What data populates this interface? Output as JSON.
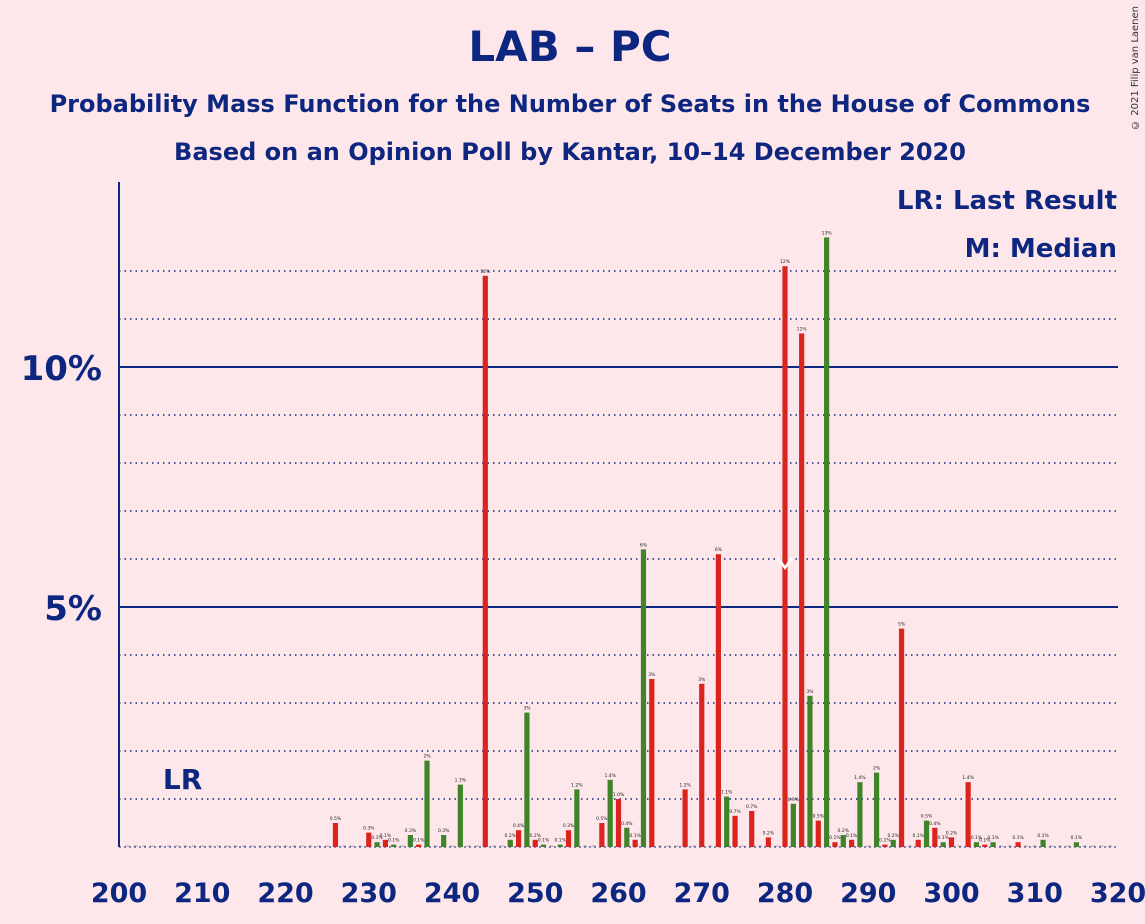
{
  "header": {
    "title": "LAB – PC",
    "subtitle": "Probability Mass Function for the Number of Seats in the House of Commons",
    "poll_info": "Based on an Opinion Poll by Kantar, 10–14 December 2020"
  },
  "copyright": "© 2021 Filip van Laenen",
  "legend": {
    "last_result": "LR: Last Result",
    "median": "M: Median"
  },
  "colors": {
    "background": "#fde7ea",
    "text": "#0d2680",
    "lab_red": "#dc241f",
    "pc_green": "#3f8428"
  },
  "chart_data": {
    "type": "bar",
    "title": "LAB – PC",
    "xlim": [
      200,
      320
    ],
    "ylim": [
      0,
      13.8
    ],
    "x_ticks": [
      200,
      210,
      220,
      230,
      240,
      250,
      260,
      270,
      280,
      290,
      300,
      310,
      320
    ],
    "x_tick_labels": [
      "200",
      "210",
      "220",
      "230",
      "240",
      "250",
      "260",
      "270",
      "280",
      "290",
      "300",
      "310",
      "320"
    ],
    "y_ticks_major": [
      5,
      10
    ],
    "y_tick_labels": [
      "5%",
      "10%"
    ],
    "y_gridlines_minor": [
      1,
      2,
      3,
      4,
      6,
      7,
      8,
      9,
      11,
      12
    ],
    "last_result": {
      "seat": 205,
      "label": "LR"
    },
    "median": {
      "seat": 280,
      "label": "M"
    },
    "seats": [
      226,
      230,
      231,
      232,
      233,
      235,
      236,
      237,
      239,
      241,
      244,
      247,
      248,
      249,
      250,
      251,
      253,
      254,
      255,
      258,
      259,
      260,
      261,
      262,
      263,
      264,
      268,
      270,
      272,
      273,
      274,
      276,
      278,
      280,
      281,
      282,
      283,
      284,
      285,
      286,
      287,
      288,
      289,
      291,
      292,
      293,
      294,
      296,
      297,
      298,
      299,
      300,
      302,
      303,
      304,
      305,
      308,
      311,
      315
    ],
    "values": [
      0.5,
      0.3,
      0.1,
      0.15,
      0.05,
      0.25,
      0.05,
      1.8,
      0.25,
      1.3,
      11.9,
      0.15,
      0.35,
      2.8,
      0.15,
      0.05,
      0.05,
      0.35,
      1.2,
      0.5,
      1.4,
      1.0,
      0.4,
      0.15,
      6.2,
      3.5,
      1.2,
      3.4,
      6.1,
      1.05,
      0.65,
      0.75,
      0.2,
      12.1,
      0.9,
      10.7,
      3.15,
      0.55,
      12.7,
      0.1,
      0.25,
      0.15,
      1.35,
      1.55,
      0.05,
      0.15,
      4.55,
      0.15,
      0.55,
      0.4,
      0.1,
      0.2,
      1.35,
      0.1,
      0.05,
      0.1,
      0.1,
      0.15,
      0.1
    ],
    "labels": [
      "0.5%",
      "0.3%",
      "0.1%",
      "0.1%",
      "0.1%",
      "0.3%",
      "0.1%",
      "2%",
      "0.3%",
      "1.3%",
      "12%",
      "0.2%",
      "0.4%",
      "3%",
      "0.2%",
      "0.1%",
      "0.1%",
      "0.3%",
      "1.2%",
      "0.5%",
      "1.4%",
      "1.0%",
      "0.4%",
      "0.1%",
      "6%",
      "3%",
      "1.2%",
      "3%",
      "6%",
      "1.1%",
      "0.7%",
      "0.7%",
      "0.2%",
      "12%",
      "0.9%",
      "11%",
      "3%",
      "0.5%",
      "13%",
      "0.1%",
      "0.2%",
      "0.1%",
      "1.4%",
      "2%",
      "0.1%",
      "0.2%",
      "5%",
      "0.1%",
      "0.5%",
      "0.4%",
      "0.1%",
      "0.2%",
      "1.4%",
      "0.1%",
      "0.1%",
      "0.1%",
      "0.1%",
      "0.1%",
      "0.1%"
    ]
  }
}
